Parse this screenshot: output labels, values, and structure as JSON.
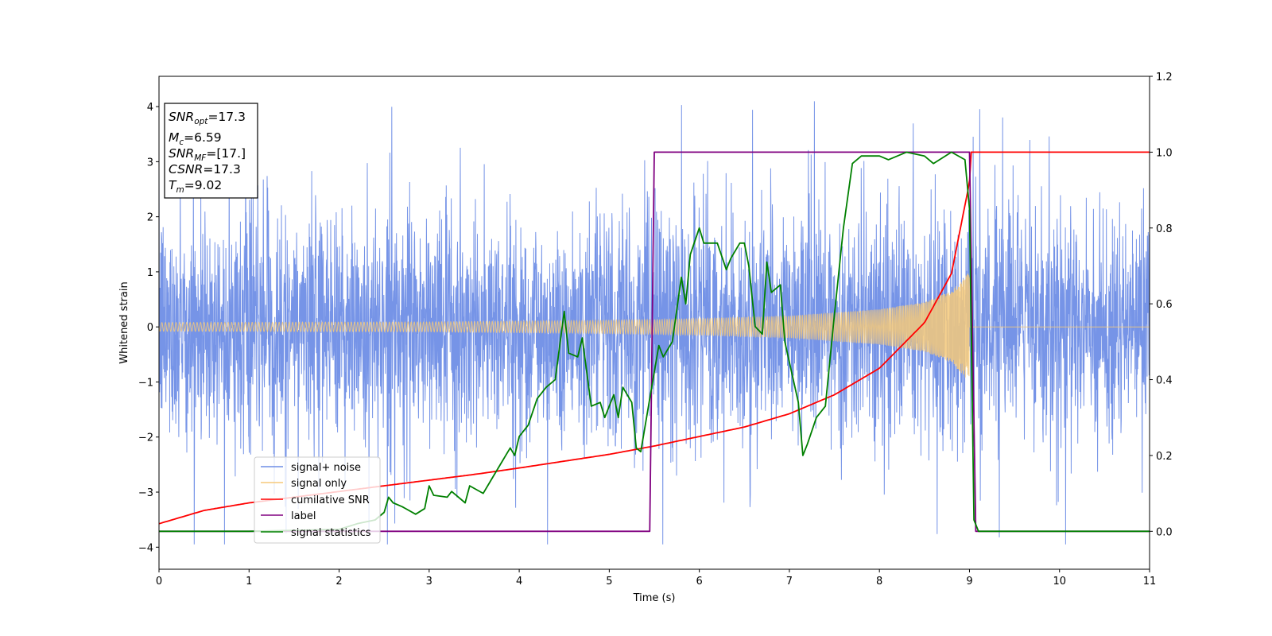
{
  "chart_data": {
    "type": "line",
    "xlabel": "Time (s)",
    "ylabel": "Whitened strain",
    "xlim": [
      0,
      11
    ],
    "ylim": [
      -4.4,
      4.55
    ],
    "y2lim": [
      -0.1,
      1.2
    ],
    "xticks": [
      "0",
      "1",
      "2",
      "3",
      "4",
      "5",
      "6",
      "7",
      "8",
      "9",
      "10",
      "11"
    ],
    "yticks": [
      "−4",
      "−3",
      "−2",
      "−1",
      "0",
      "1",
      "2",
      "3",
      "4"
    ],
    "y2ticks": [
      "0.0",
      "0.2",
      "0.4",
      "0.6",
      "0.8",
      "1.0",
      "1.2"
    ],
    "grid": false,
    "legend_position": "lower-left",
    "legend": [
      {
        "label": "signal+ noise",
        "color": "#6f8ee6"
      },
      {
        "label": "signal only",
        "color": "#f5c97a"
      },
      {
        "label": "cumilative SNR",
        "color": "#ff0000"
      },
      {
        "label": "label",
        "color": "#800080"
      },
      {
        "label": "signal statistics",
        "color": "#008000"
      }
    ],
    "info_box": {
      "snr_opt": {
        "sym": "SNR",
        "sub": "opt",
        "val": "=17.3"
      },
      "mc": {
        "sym": "M",
        "sub": "c",
        "val": "=6.59"
      },
      "snr_mf": {
        "sym": "SNR",
        "sub": "MF",
        "val": "=[17.]"
      },
      "csnr": {
        "sym": "CSNR",
        "sub": "",
        "val": "=17.3"
      },
      "tm": {
        "sym": "T",
        "sub": "m",
        "val": "=9.02"
      }
    },
    "series": [
      {
        "name": "signal+ noise",
        "axis": "left",
        "style": "dense noise band, approx. -2.5 to 2.5 with spikes up to 4.2 and down to -3.9",
        "color": "#6f8ee6"
      },
      {
        "name": "signal only",
        "axis": "left",
        "style": "chirp oscillation growing in amplitude until merger near t=9.02, then flat at 0",
        "color": "#f5c97a",
        "amplitude_points": [
          [
            0,
            0.08
          ],
          [
            3,
            0.09
          ],
          [
            5,
            0.12
          ],
          [
            6,
            0.15
          ],
          [
            7,
            0.2
          ],
          [
            8,
            0.32
          ],
          [
            8.5,
            0.45
          ],
          [
            8.8,
            0.65
          ],
          [
            9.0,
            1.0
          ],
          [
            9.02,
            0
          ]
        ]
      },
      {
        "name": "cumilative SNR",
        "axis": "right",
        "color": "#ff0000",
        "points": [
          [
            0,
            0.02
          ],
          [
            0.5,
            0.055
          ],
          [
            1,
            0.075
          ],
          [
            1.5,
            0.09
          ],
          [
            2,
            0.105
          ],
          [
            2.5,
            0.12
          ],
          [
            3,
            0.135
          ],
          [
            3.5,
            0.15
          ],
          [
            4,
            0.167
          ],
          [
            4.5,
            0.185
          ],
          [
            5,
            0.203
          ],
          [
            5.5,
            0.225
          ],
          [
            6,
            0.25
          ],
          [
            6.5,
            0.275
          ],
          [
            7,
            0.31
          ],
          [
            7.5,
            0.36
          ],
          [
            8,
            0.43
          ],
          [
            8.5,
            0.55
          ],
          [
            8.8,
            0.68
          ],
          [
            9.0,
            0.92
          ],
          [
            9.02,
            1.0
          ],
          [
            11,
            1.0
          ]
        ]
      },
      {
        "name": "label",
        "axis": "right",
        "color": "#800080",
        "points": [
          [
            0,
            0
          ],
          [
            5.45,
            0
          ],
          [
            5.5,
            1
          ],
          [
            9.0,
            1
          ],
          [
            9.07,
            0
          ],
          [
            11,
            0
          ]
        ]
      },
      {
        "name": "signal statistics",
        "axis": "right",
        "color": "#008000",
        "points": [
          [
            0,
            0
          ],
          [
            1,
            0
          ],
          [
            2,
            0.005
          ],
          [
            2.2,
            0.02
          ],
          [
            2.4,
            0.03
          ],
          [
            2.5,
            0.05
          ],
          [
            2.55,
            0.09
          ],
          [
            2.6,
            0.075
          ],
          [
            2.7,
            0.065
          ],
          [
            2.85,
            0.045
          ],
          [
            2.95,
            0.06
          ],
          [
            3.0,
            0.12
          ],
          [
            3.05,
            0.095
          ],
          [
            3.2,
            0.09
          ],
          [
            3.25,
            0.105
          ],
          [
            3.4,
            0.075
          ],
          [
            3.45,
            0.12
          ],
          [
            3.6,
            0.1
          ],
          [
            3.7,
            0.14
          ],
          [
            3.8,
            0.18
          ],
          [
            3.9,
            0.22
          ],
          [
            3.95,
            0.2
          ],
          [
            4.0,
            0.25
          ],
          [
            4.1,
            0.28
          ],
          [
            4.2,
            0.35
          ],
          [
            4.3,
            0.38
          ],
          [
            4.4,
            0.4
          ],
          [
            4.5,
            0.58
          ],
          [
            4.55,
            0.47
          ],
          [
            4.65,
            0.46
          ],
          [
            4.7,
            0.51
          ],
          [
            4.8,
            0.33
          ],
          [
            4.9,
            0.34
          ],
          [
            4.95,
            0.3
          ],
          [
            5.05,
            0.36
          ],
          [
            5.1,
            0.3
          ],
          [
            5.15,
            0.38
          ],
          [
            5.25,
            0.34
          ],
          [
            5.3,
            0.22
          ],
          [
            5.35,
            0.21
          ],
          [
            5.45,
            0.35
          ],
          [
            5.55,
            0.49
          ],
          [
            5.6,
            0.46
          ],
          [
            5.7,
            0.5
          ],
          [
            5.8,
            0.67
          ],
          [
            5.85,
            0.6
          ],
          [
            5.9,
            0.73
          ],
          [
            6.0,
            0.8
          ],
          [
            6.05,
            0.76
          ],
          [
            6.2,
            0.76
          ],
          [
            6.3,
            0.69
          ],
          [
            6.35,
            0.72
          ],
          [
            6.45,
            0.76
          ],
          [
            6.5,
            0.76
          ],
          [
            6.55,
            0.7
          ],
          [
            6.62,
            0.54
          ],
          [
            6.7,
            0.52
          ],
          [
            6.75,
            0.71
          ],
          [
            6.8,
            0.63
          ],
          [
            6.9,
            0.65
          ],
          [
            6.95,
            0.5
          ],
          [
            7.1,
            0.34
          ],
          [
            7.15,
            0.2
          ],
          [
            7.2,
            0.23
          ],
          [
            7.3,
            0.3
          ],
          [
            7.4,
            0.33
          ],
          [
            7.5,
            0.57
          ],
          [
            7.6,
            0.8
          ],
          [
            7.7,
            0.97
          ],
          [
            7.8,
            0.99
          ],
          [
            8.0,
            0.99
          ],
          [
            8.1,
            0.98
          ],
          [
            8.3,
            1.0
          ],
          [
            8.5,
            0.99
          ],
          [
            8.6,
            0.97
          ],
          [
            8.8,
            1.0
          ],
          [
            8.95,
            0.98
          ],
          [
            9.0,
            0.85
          ],
          [
            9.05,
            0.03
          ],
          [
            9.1,
            0
          ],
          [
            11,
            0
          ]
        ]
      }
    ]
  }
}
